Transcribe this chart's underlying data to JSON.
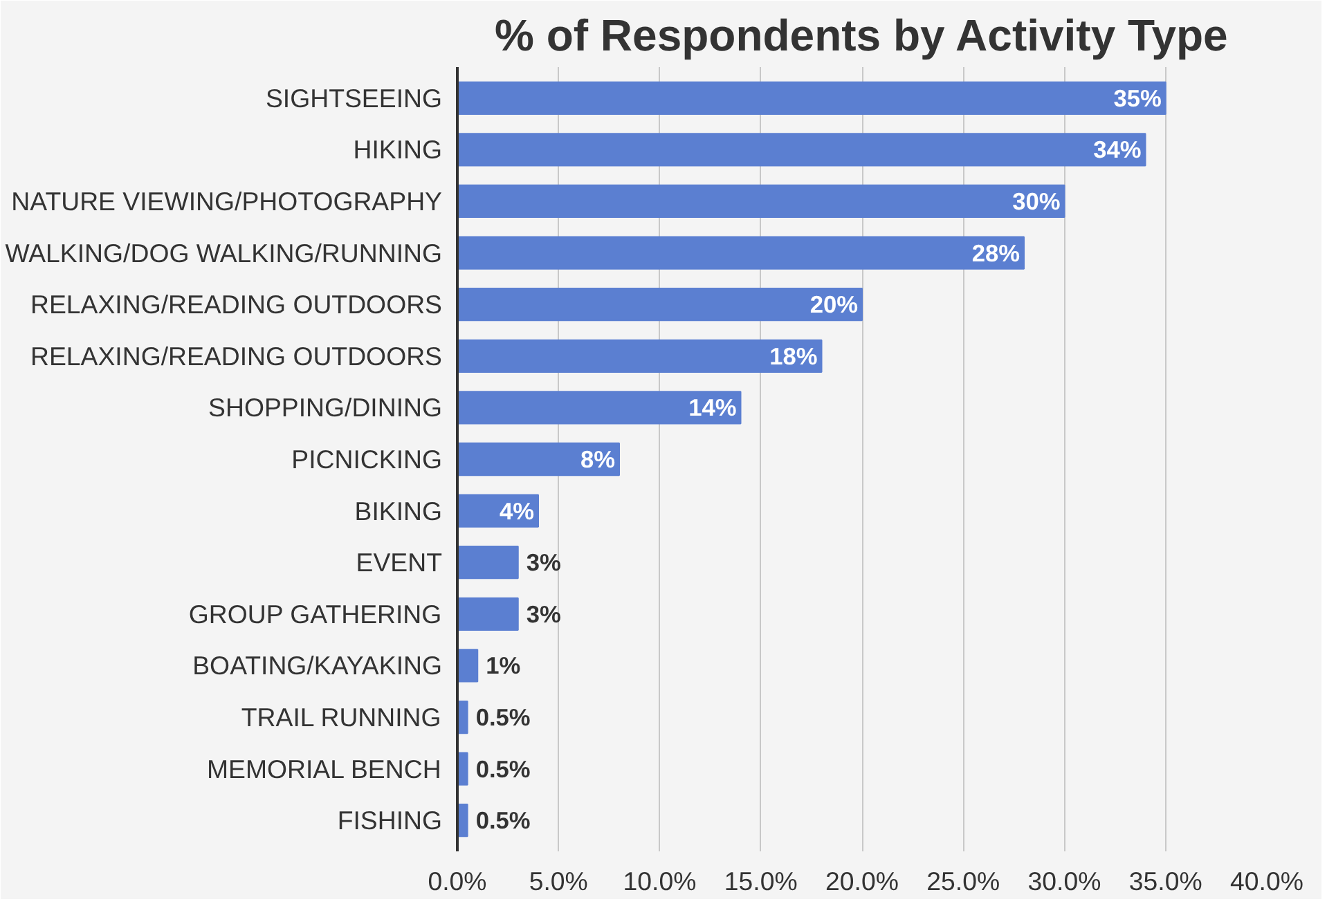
{
  "chart_data": {
    "type": "bar",
    "orientation": "horizontal",
    "title": "% of Respondents by Activity Type",
    "categories": [
      "SIGHTSEEING",
      "HIKING",
      "NATURE VIEWING/PHOTOGRAPHY",
      "WALKING/DOG WALKING/RUNNING",
      "RELAXING/READING OUTDOORS",
      "RELAXING/READING OUTDOORS",
      "SHOPPING/DINING",
      "PICNICKING",
      "BIKING",
      "EVENT",
      "GROUP GATHERING",
      "BOATING/KAYAKING",
      "TRAIL RUNNING",
      "MEMORIAL BENCH",
      "FISHING"
    ],
    "values": [
      35,
      34,
      30,
      28,
      20,
      18,
      14,
      8,
      4,
      3,
      3,
      1,
      0.5,
      0.5,
      0.5
    ],
    "value_labels": [
      "35%",
      "34%",
      "30%",
      "28%",
      "20%",
      "18%",
      "14%",
      "8%",
      "4%",
      "3%",
      "3%",
      "1%",
      "0.5%",
      "0.5%",
      "0.5%"
    ],
    "color": "#5b7fd1",
    "xlim": [
      0,
      40
    ],
    "xticks": [
      {
        "value": 0,
        "label": "0.0%"
      },
      {
        "value": 5,
        "label": "5.0%"
      },
      {
        "value": 10,
        "label": "10.0%"
      },
      {
        "value": 15,
        "label": "15.0%"
      },
      {
        "value": 20,
        "label": "20.0%"
      },
      {
        "value": 25,
        "label": "25.0%"
      },
      {
        "value": 30,
        "label": "30.0%"
      },
      {
        "value": 35,
        "label": "35.0%"
      },
      {
        "value": 40,
        "label": "40.0%"
      }
    ],
    "grid": "x"
  }
}
